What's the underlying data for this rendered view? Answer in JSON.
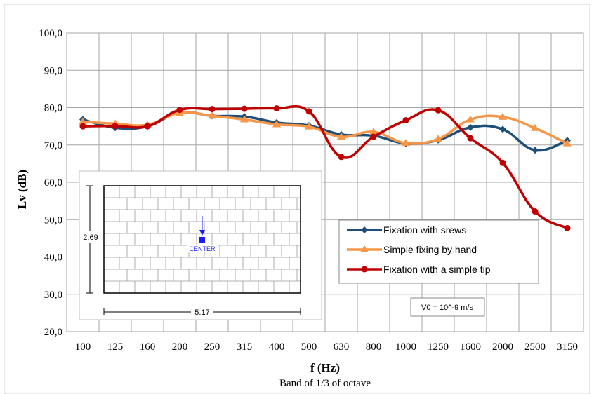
{
  "chart_data": {
    "type": "line",
    "categories": [
      "100",
      "125",
      "160",
      "200",
      "250",
      "315",
      "400",
      "500",
      "630",
      "800",
      "1000",
      "1250",
      "1600",
      "2000",
      "2500",
      "3150"
    ],
    "xlabel": "f (Hz)",
    "xlabel_sub": "Band of 1/3 of octave",
    "ylabel": "Lv (dB)",
    "ylim": [
      20,
      100
    ],
    "yticks": [
      "20,0",
      "30,0",
      "40,0",
      "50,0",
      "60,0",
      "70,0",
      "80,0",
      "90,0",
      "100,0"
    ],
    "grid": true,
    "legend_position": "bottom-right",
    "series": [
      {
        "name": "Fixation with srews",
        "color": "#1f4e79",
        "marker": "diamond",
        "values": [
          76.8,
          74.6,
          75.0,
          78.7,
          77.8,
          77.6,
          76.0,
          75.2,
          72.8,
          72.5,
          70.4,
          71.3,
          74.7,
          74.2,
          68.6,
          71.2
        ]
      },
      {
        "name": "Simple fixing by hand",
        "color": "#f79646",
        "marker": "triangle",
        "values": [
          76.2,
          75.7,
          75.4,
          78.6,
          77.8,
          76.8,
          75.5,
          74.9,
          72.2,
          73.5,
          70.5,
          71.6,
          76.8,
          77.5,
          74.5,
          70.4
        ]
      },
      {
        "name": "Fixation with a simple tip",
        "color": "#c00000",
        "marker": "circle",
        "values": [
          75.0,
          75.1,
          75.0,
          79.4,
          79.6,
          79.7,
          79.8,
          79.0,
          66.8,
          72.2,
          76.6,
          79.3,
          71.8,
          65.2,
          52.2,
          47.7
        ]
      }
    ],
    "annotation_box": "V0 = 10^-9 m/s",
    "inset": {
      "height_label": "2.69",
      "width_label": "5.17",
      "center_label": "CENTER"
    }
  }
}
